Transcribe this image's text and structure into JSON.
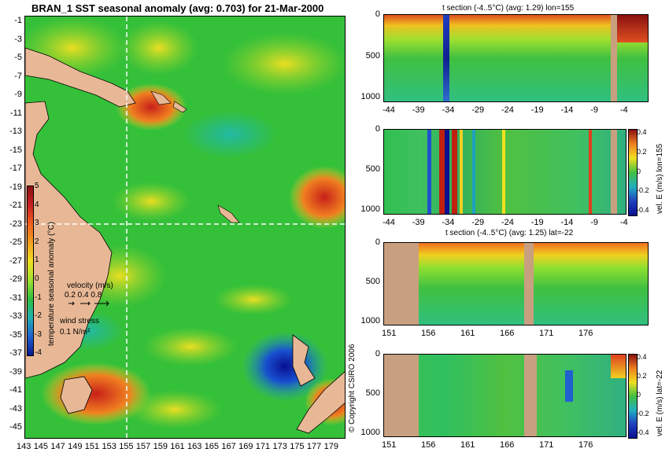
{
  "map": {
    "title": "BRAN_1 SST seasonal anomaly (avg: 0.703) for 21-Mar-2000",
    "lat_ticks": [
      "-1",
      "-3",
      "-5",
      "-7",
      "-9",
      "-11",
      "-13",
      "-15",
      "-17",
      "-19",
      "-21",
      "-23",
      "-25",
      "-27",
      "-29",
      "-31",
      "-33",
      "-35",
      "-37",
      "-39",
      "-41",
      "-43",
      "-45"
    ],
    "lon_ticks": [
      "143",
      "145",
      "147",
      "149",
      "151",
      "153",
      "155",
      "157",
      "159",
      "161",
      "163",
      "165",
      "167",
      "169",
      "171",
      "173",
      "175",
      "177",
      "179"
    ],
    "colorbar": {
      "ticks": [
        "5",
        "4",
        "3",
        "2",
        "1",
        "0",
        "-1",
        "-2",
        "-3",
        "-4"
      ],
      "label": "temperature seasonal anomaly (°C)"
    },
    "velocity_legend": {
      "title": "velocity (m/s)",
      "values": "0.2 0.4 0.8"
    },
    "wind_legend": {
      "title": "wind stress",
      "value": "0.1 N/m²"
    },
    "copyright": "© Copyright CSIRO 2006",
    "colors": {
      "land": "#e8b896",
      "ocean_base": "#35c03a",
      "anomaly_hot": "#c8201a",
      "anomaly_cold": "#0a1aa0",
      "crosshair": "#ffffff"
    }
  },
  "sections": [
    {
      "title": "t section (-4..5°C) (avg: 1.29) lon=155",
      "y_ticks": [
        "0",
        "500",
        "1000"
      ],
      "x_ticks": [
        "-44",
        "-39",
        "-34",
        "-29",
        "-24",
        "-19",
        "-14",
        "-9",
        "-4"
      ]
    },
    {
      "title": "",
      "y_ticks": [
        "0",
        "500",
        "1000"
      ],
      "x_ticks": [
        "-44",
        "-39",
        "-34",
        "-29",
        "-24",
        "-19",
        "-14",
        "-9",
        "-4"
      ],
      "side_label": "vel. E (m/s) lon=155",
      "colorbar_ticks": [
        "0.4",
        "0.2",
        "0",
        "-0.2",
        "-0.4"
      ]
    },
    {
      "title": "t section (-4..5°C) (avg: 1.25) lat=-22",
      "y_ticks": [
        "0",
        "500",
        "1000"
      ],
      "x_ticks": [
        "151",
        "156",
        "161",
        "166",
        "171",
        "176"
      ]
    },
    {
      "title": "",
      "y_ticks": [
        "0",
        "500",
        "1000"
      ],
      "x_ticks": [
        "151",
        "156",
        "161",
        "166",
        "171",
        "176"
      ],
      "side_label": "vel. E (m/s) lat=-22",
      "colorbar_ticks": [
        "0.4",
        "0.2",
        "0",
        "-0.2",
        "-0.4"
      ]
    }
  ]
}
